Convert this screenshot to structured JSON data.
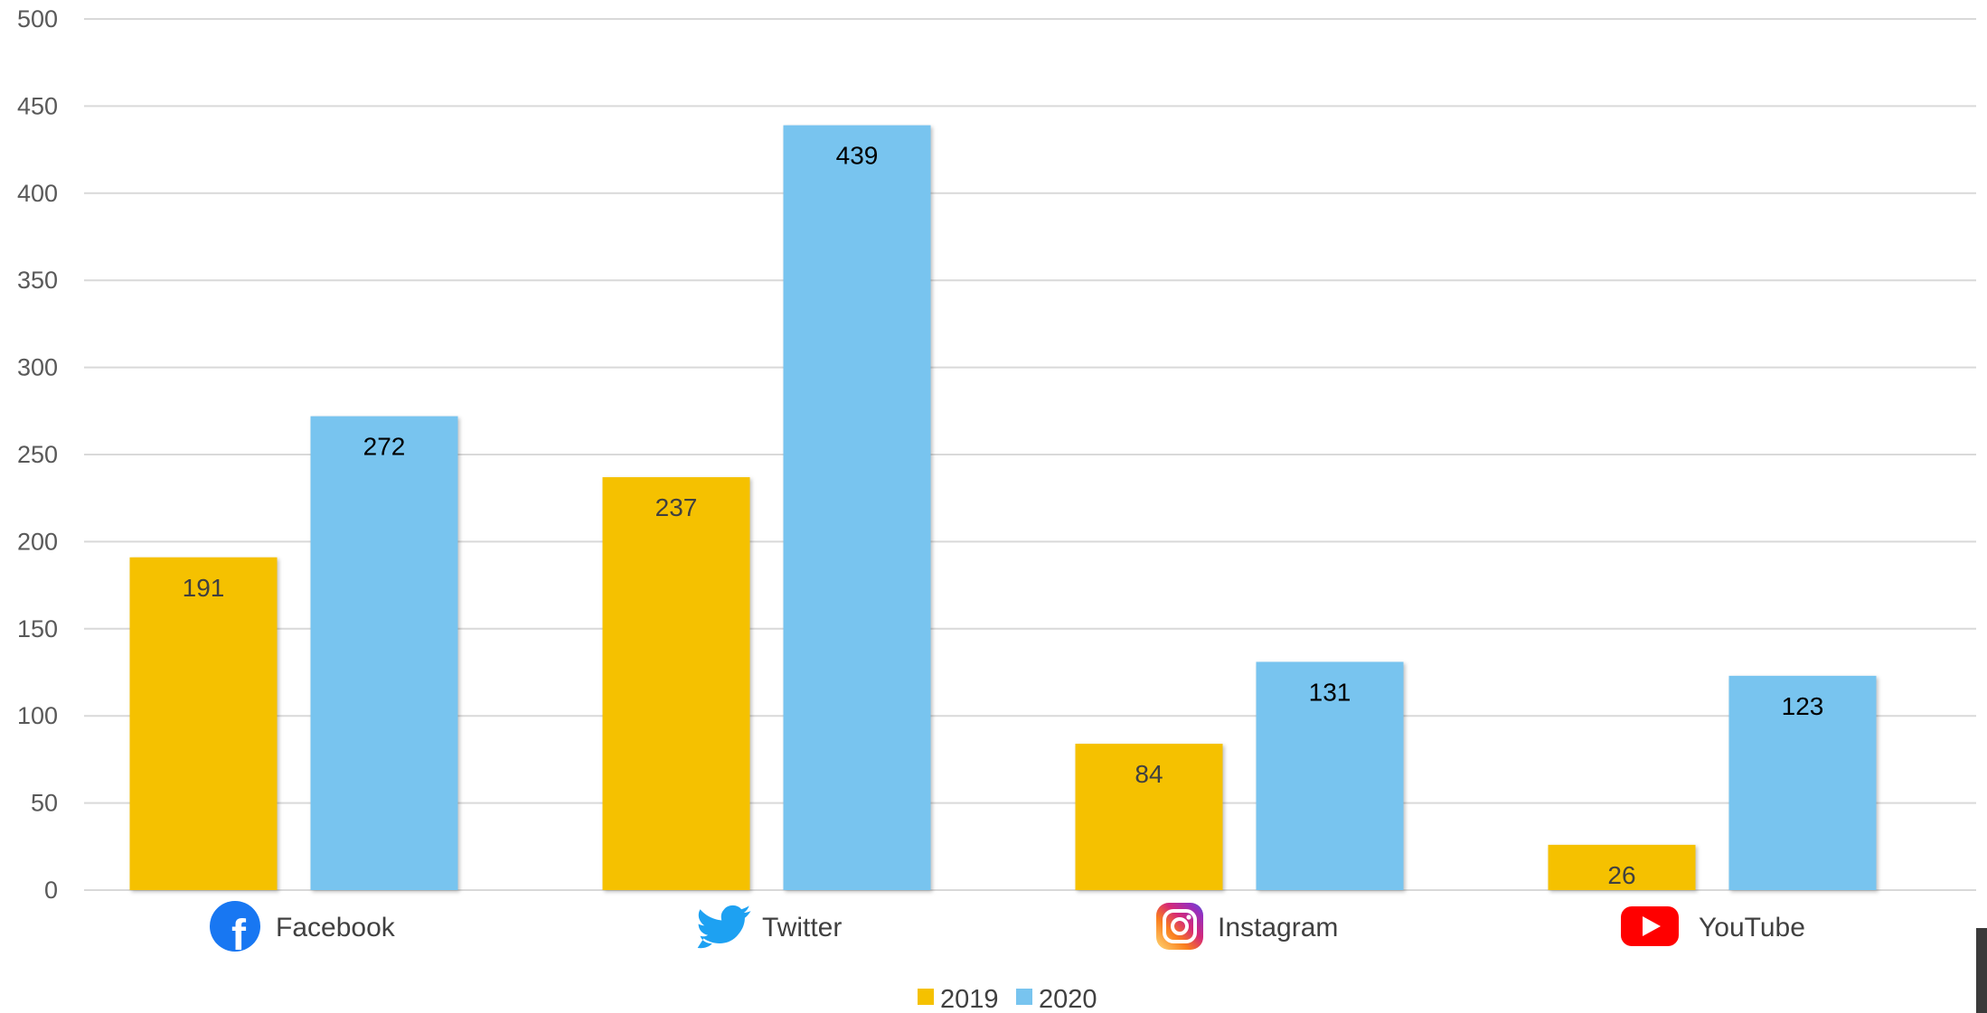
{
  "chart_data": {
    "type": "bar",
    "categories": [
      "Facebook",
      "Twitter",
      "Instagram",
      "YouTube"
    ],
    "category_icons": [
      "facebook-icon",
      "twitter-icon",
      "instagram-icon",
      "youtube-icon"
    ],
    "series": [
      {
        "name": "2019",
        "values": [
          191,
          237,
          84,
          26
        ],
        "color": "#F5C100",
        "label_color": "#404040"
      },
      {
        "name": "2020",
        "values": [
          272,
          439,
          131,
          123
        ],
        "color": "#78C4EF",
        "label_color": "#000000"
      }
    ],
    "ylim": [
      0,
      500
    ],
    "yticks": [
      0,
      50,
      100,
      150,
      200,
      250,
      300,
      350,
      400,
      450,
      500
    ],
    "grid": true,
    "legend_position": "bottom",
    "data_labels": true,
    "title": "",
    "xlabel": "",
    "ylabel": ""
  },
  "colors": {
    "facebook": "#1877F2",
    "twitter": "#1DA1F2",
    "instagram_start": "#FEDA75",
    "instagram_mid": "#D62976",
    "instagram_end": "#4F5BD5",
    "youtube": "#FF0000",
    "grid": "#D9D9D9"
  }
}
